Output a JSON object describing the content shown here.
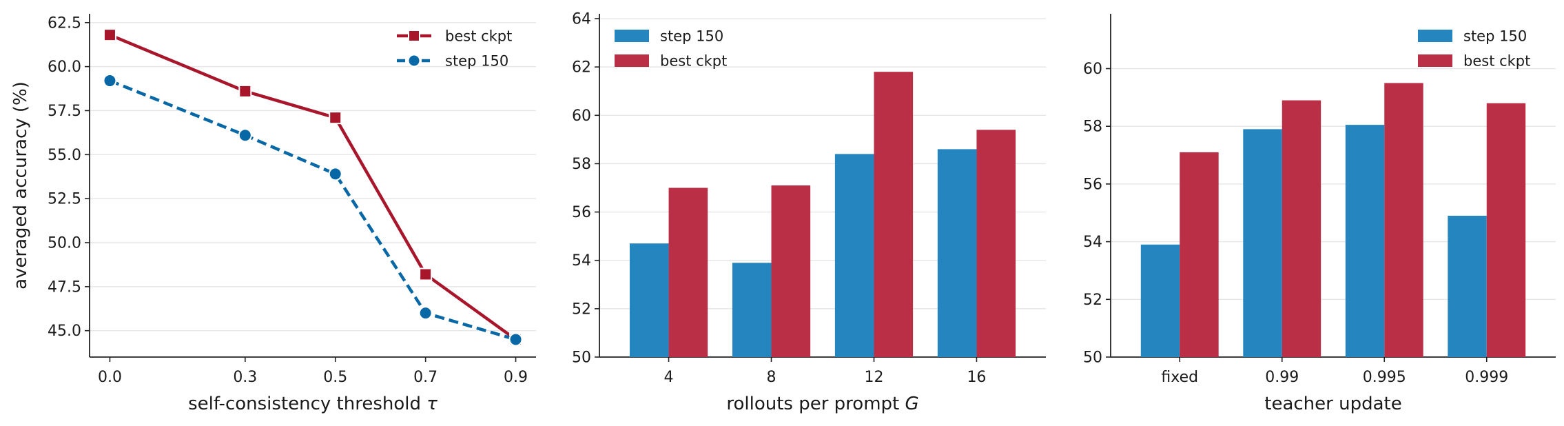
{
  "colors": {
    "red": "#A8162B",
    "blue": "#0868A6",
    "bar_red": "#BA2F45",
    "bar_blue": "#2585BE",
    "grid": "#e6e6e6"
  },
  "chart_data": [
    {
      "type": "line",
      "xlabel_main": "self-consistency threshold ",
      "xlabel_var": "τ",
      "ylabel": "averaged accuracy (%)",
      "x": [
        0.0,
        0.3,
        0.5,
        0.7,
        0.9
      ],
      "xticks": [
        "0.0",
        "0.3",
        "0.5",
        "0.7",
        "0.9"
      ],
      "ylim": [
        43.5,
        63.0
      ],
      "yticks": [
        "45.0",
        "47.5",
        "50.0",
        "52.5",
        "55.0",
        "57.5",
        "60.0",
        "62.5"
      ],
      "grid": "horizontal",
      "legend_loc": "top-right",
      "series": [
        {
          "name": "best ckpt",
          "values": [
            61.8,
            58.6,
            57.1,
            48.2,
            44.5
          ],
          "color": "#A8162B",
          "marker": "square",
          "style": "solid"
        },
        {
          "name": "step 150",
          "values": [
            59.2,
            56.1,
            53.9,
            46.0,
            44.5
          ],
          "color": "#0868A6",
          "marker": "circle",
          "style": "dashed"
        }
      ]
    },
    {
      "type": "bar",
      "xlabel_main": "rollouts per prompt ",
      "xlabel_var": "G",
      "categories": [
        "4",
        "8",
        "12",
        "16"
      ],
      "ylim": [
        50,
        64.2
      ],
      "yticks": [
        "50",
        "52",
        "54",
        "56",
        "58",
        "60",
        "62",
        "64"
      ],
      "grid": "horizontal",
      "legend_loc": "top-left",
      "series": [
        {
          "name": "step 150",
          "values": [
            54.7,
            53.9,
            58.4,
            58.6
          ],
          "color": "#2585BE"
        },
        {
          "name": "best ckpt",
          "values": [
            57.0,
            57.1,
            61.8,
            59.4
          ],
          "color": "#BA2F45"
        }
      ]
    },
    {
      "type": "bar",
      "xlabel_main": "teacher update",
      "xlabel_var": "",
      "categories": [
        "fixed",
        "0.99",
        "0.995",
        "0.999"
      ],
      "ylim": [
        50,
        61.9
      ],
      "yticks": [
        "50",
        "52",
        "54",
        "56",
        "58",
        "60"
      ],
      "grid": "horizontal",
      "legend_loc": "top-right",
      "series": [
        {
          "name": "step 150",
          "values": [
            53.9,
            57.9,
            58.05,
            54.9
          ],
          "color": "#2585BE"
        },
        {
          "name": "best ckpt",
          "values": [
            57.1,
            58.9,
            59.5,
            58.8
          ],
          "color": "#BA2F45"
        }
      ]
    }
  ]
}
